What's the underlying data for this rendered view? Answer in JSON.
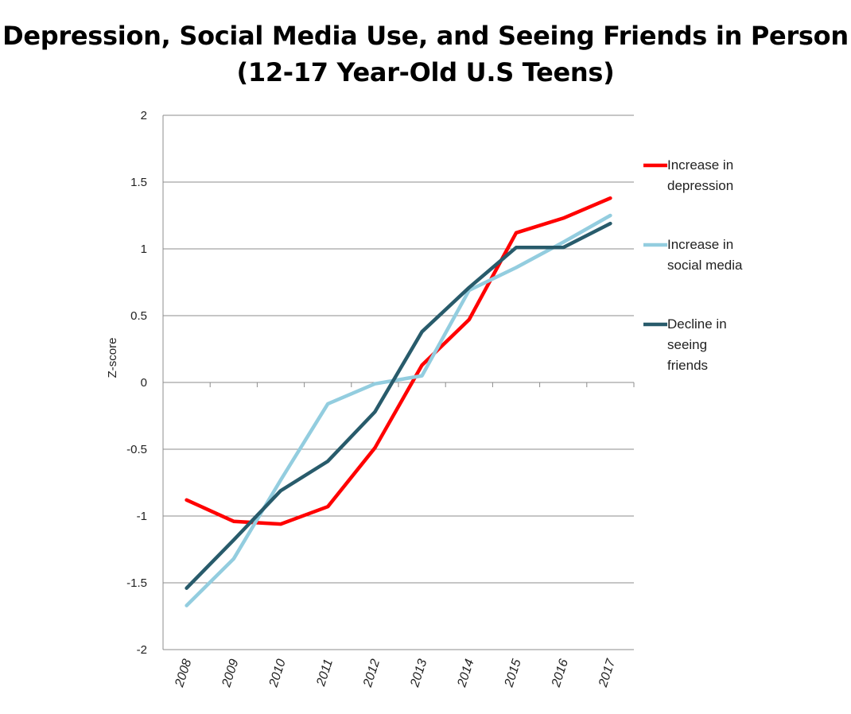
{
  "title": {
    "line1": "Depression, Social Media Use, and Seeing Friends in Person",
    "line2": "(12-17 Year-Old U.S Teens)"
  },
  "chart_data": {
    "type": "line",
    "ylabel": "Z-score",
    "xlabel": "",
    "ylim": [
      -2,
      2
    ],
    "y_ticks": [
      2,
      1.5,
      1,
      0.5,
      0,
      -0.5,
      -1,
      -1.5,
      -2
    ],
    "y_tick_labels": [
      "2",
      "1.5",
      "1",
      "0.5",
      "0",
      "-0.5",
      "-1",
      "-1.5",
      "-2"
    ],
    "x": [
      "2008",
      "2009",
      "2010",
      "2011",
      "2012",
      "2013",
      "2014",
      "2015",
      "2016",
      "2017"
    ],
    "grid": true,
    "legend_position": "right",
    "series": [
      {
        "name": "Increase in depression",
        "legend_lines": [
          "Increase in",
          "depression"
        ],
        "color": "#ff0000",
        "values": [
          -0.88,
          -1.04,
          -1.06,
          -0.93,
          -0.49,
          0.13,
          0.47,
          1.12,
          1.23,
          1.38
        ]
      },
      {
        "name": "Increase in social media",
        "legend_lines": [
          "Increase in",
          "social media"
        ],
        "color": "#93cddf",
        "values": [
          -1.67,
          -1.32,
          -0.73,
          -0.16,
          -0.01,
          0.05,
          0.69,
          0.86,
          1.05,
          1.25
        ]
      },
      {
        "name": "Decline in seeing friends",
        "legend_lines": [
          "Decline in",
          "seeing",
          "friends"
        ],
        "color": "#285b6b",
        "values": [
          -1.54,
          -1.18,
          -0.81,
          -0.59,
          -0.22,
          0.38,
          0.71,
          1.01,
          1.01,
          1.19
        ]
      }
    ]
  }
}
